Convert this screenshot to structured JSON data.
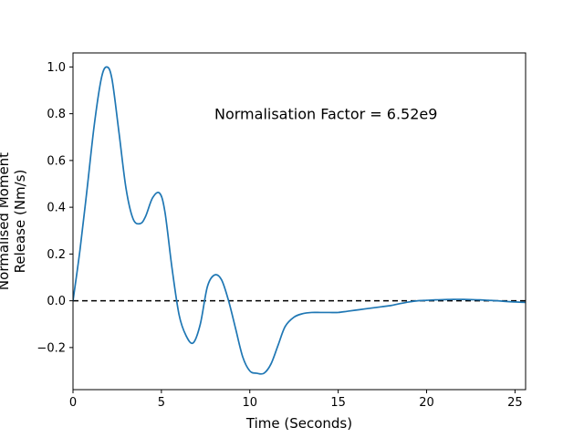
{
  "chart_data": {
    "type": "line",
    "title": "",
    "xlabel": "Time (Seconds)",
    "ylabel_lines": [
      "Normalised Moment",
      "Release (Nm/s)"
    ],
    "xlim": [
      0,
      25.6
    ],
    "ylim": [
      -0.38,
      1.06
    ],
    "xticks": [
      0,
      5,
      10,
      15,
      20,
      25
    ],
    "yticks": [
      -0.2,
      0.0,
      0.2,
      0.4,
      0.6,
      0.8,
      1.0
    ],
    "xtick_labels": [
      "0",
      "5",
      "10",
      "15",
      "20",
      "25"
    ],
    "ytick_labels": [
      "−0.2",
      "0.0",
      "0.2",
      "0.4",
      "0.6",
      "0.8",
      "1.0"
    ],
    "annotation": {
      "text": "Normalisation Factor = 6.52e9",
      "x": 8.0,
      "y": 0.8
    },
    "grid": false,
    "legend": "none",
    "series": [
      {
        "color": "#1f77b4",
        "x": [
          0,
          0.4,
          0.8,
          1.2,
          1.6,
          1.9,
          2.2,
          2.6,
          3.0,
          3.4,
          3.8,
          4.1,
          4.5,
          4.9,
          5.2,
          5.6,
          6.0,
          6.4,
          6.8,
          7.2,
          7.6,
          8.0,
          8.4,
          8.8,
          9.2,
          9.6,
          10.0,
          10.4,
          10.8,
          11.2,
          11.6,
          12.0,
          12.5,
          13.0,
          13.5,
          14.0,
          14.5,
          15.0,
          15.5,
          16.0,
          16.5,
          17.0,
          17.5,
          18.0,
          18.5,
          19.0,
          19.5,
          20.0,
          20.5,
          21.0,
          21.5,
          22.0,
          22.5,
          23.0,
          23.5,
          24.0,
          24.5,
          25.0,
          25.6
        ],
        "y": [
          0.0,
          0.22,
          0.48,
          0.75,
          0.95,
          1.0,
          0.95,
          0.72,
          0.48,
          0.35,
          0.33,
          0.36,
          0.44,
          0.46,
          0.38,
          0.14,
          -0.06,
          -0.15,
          -0.18,
          -0.1,
          0.06,
          0.11,
          0.09,
          0.0,
          -0.12,
          -0.24,
          -0.3,
          -0.31,
          -0.31,
          -0.27,
          -0.19,
          -0.11,
          -0.07,
          -0.055,
          -0.05,
          -0.05,
          -0.05,
          -0.05,
          -0.045,
          -0.04,
          -0.035,
          -0.03,
          -0.025,
          -0.02,
          -0.012,
          -0.005,
          0.0,
          0.002,
          0.004,
          0.005,
          0.006,
          0.006,
          0.005,
          0.004,
          0.002,
          0.0,
          -0.003,
          -0.005,
          -0.007
        ]
      }
    ],
    "reference_line": {
      "y": 0.0,
      "color": "#000000",
      "style": "dashed"
    }
  }
}
